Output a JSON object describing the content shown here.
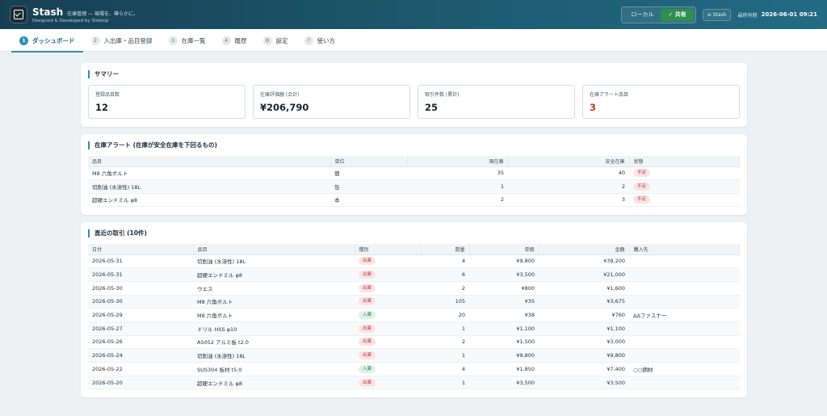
{
  "header": {
    "brand_name": "Stash",
    "tagline": "在庫管理 — 現場を、導らかに。",
    "credit": "Designed & Developed by SlideUp",
    "mode_local": "ローカル",
    "mode_shared": "✓ 共有",
    "stash_button": "≡ Stash",
    "sync_label": "最終同期",
    "sync_time": "2026-06-01 09:21"
  },
  "tabs": [
    {
      "num": "1",
      "label": "ダッシュボード"
    },
    {
      "num": "2",
      "label": "入出庫・品目登録"
    },
    {
      "num": "3",
      "label": "在庫一覧"
    },
    {
      "num": "4",
      "label": "履歴"
    },
    {
      "num": "⚙",
      "label": "設定"
    },
    {
      "num": "?",
      "label": "使い方"
    }
  ],
  "summary": {
    "title": "サマリー",
    "items": [
      {
        "label": "登録品目数",
        "value": "12"
      },
      {
        "label": "在庫評価額 (合計)",
        "value": "¥206,790"
      },
      {
        "label": "取引件数 (累計)",
        "value": "25"
      },
      {
        "label": "在庫アラート品目",
        "value": "3"
      }
    ]
  },
  "alerts": {
    "title": "在庫アラート (在庫が安全在庫を下回るもの)",
    "headers": [
      "品目",
      "単位",
      "現在庫",
      "安全在庫",
      "状態"
    ],
    "rows": [
      {
        "item": "M8 六角ボルト",
        "unit": "個",
        "stock": "35",
        "safety": "40",
        "status": "不足"
      },
      {
        "item": "切削油 (水溶性) 18L",
        "unit": "缶",
        "stock": "1",
        "safety": "2",
        "status": "不足"
      },
      {
        "item": "超硬エンドミル φ8",
        "unit": "本",
        "stock": "2",
        "safety": "3",
        "status": "不足"
      }
    ]
  },
  "transactions": {
    "title": "直近の取引 (10件)",
    "headers": [
      "日付",
      "品目",
      "種別",
      "数量",
      "単価",
      "金額",
      "購入先"
    ],
    "rows": [
      {
        "date": "2026-05-31",
        "item": "切削油 (水溶性) 18L",
        "type": "出庫",
        "kind": "out",
        "qty": "4",
        "price": "¥9,800",
        "amount": "¥39,200",
        "vendor": ""
      },
      {
        "date": "2026-05-31",
        "item": "超硬エンドミル φ8",
        "type": "出庫",
        "kind": "out",
        "qty": "6",
        "price": "¥3,500",
        "amount": "¥21,000",
        "vendor": ""
      },
      {
        "date": "2026-05-30",
        "item": "ウエス",
        "type": "出庫",
        "kind": "out",
        "qty": "2",
        "price": "¥800",
        "amount": "¥1,600",
        "vendor": ""
      },
      {
        "date": "2026-05-30",
        "item": "M8 六角ボルト",
        "type": "出庫",
        "kind": "out",
        "qty": "105",
        "price": "¥35",
        "amount": "¥3,675",
        "vendor": ""
      },
      {
        "date": "2026-05-29",
        "item": "M8 六角ボルト",
        "type": "入庫",
        "kind": "in",
        "qty": "20",
        "price": "¥38",
        "amount": "¥760",
        "vendor": "ΔΔファスナー"
      },
      {
        "date": "2026-05-27",
        "item": "ドリル HSS φ10",
        "type": "出庫",
        "kind": "out",
        "qty": "1",
        "price": "¥1,100",
        "amount": "¥1,100",
        "vendor": ""
      },
      {
        "date": "2026-05-26",
        "item": "A5052 アルミ板 t2.0",
        "type": "出庫",
        "kind": "out",
        "qty": "2",
        "price": "¥1,500",
        "amount": "¥3,000",
        "vendor": ""
      },
      {
        "date": "2026-05-24",
        "item": "切削油 (水溶性) 18L",
        "type": "出庫",
        "kind": "out",
        "qty": "1",
        "price": "¥9,800",
        "amount": "¥9,800",
        "vendor": ""
      },
      {
        "date": "2026-05-22",
        "item": "SUS304 板材 t5.0",
        "type": "入庫",
        "kind": "in",
        "qty": "4",
        "price": "¥1,850",
        "amount": "¥7,400",
        "vendor": "○○鋼材"
      },
      {
        "date": "2026-05-20",
        "item": "超硬エンドミル φ8",
        "type": "出庫",
        "kind": "out",
        "qty": "1",
        "price": "¥3,500",
        "amount": "¥3,500",
        "vendor": ""
      }
    ]
  }
}
